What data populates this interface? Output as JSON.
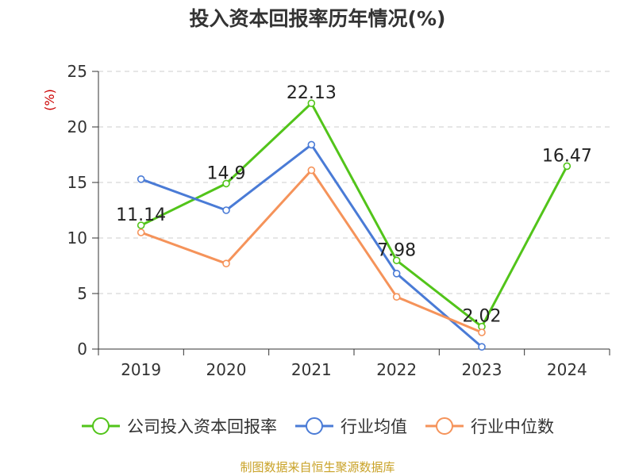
{
  "chart_data": {
    "type": "line",
    "title": "投入资本回报率历年情况(%)",
    "ylabel": "(%)",
    "xlabel": "",
    "ylim": [
      0,
      25
    ],
    "yticks": [
      0,
      5,
      10,
      15,
      20,
      25
    ],
    "categories": [
      "2019",
      "2020",
      "2021",
      "2022",
      "2023",
      "2024"
    ],
    "series": [
      {
        "name": "公司投入资本回报率",
        "color": "#52c41a",
        "values": [
          11.14,
          14.9,
          22.13,
          7.98,
          2.02,
          16.47
        ],
        "labels": true
      },
      {
        "name": "行业均值",
        "color": "#4a7bd6",
        "values": [
          15.3,
          12.5,
          18.4,
          6.8,
          0.2,
          null
        ],
        "labels": false
      },
      {
        "name": "行业中位数",
        "color": "#f5935a",
        "values": [
          10.5,
          7.7,
          16.1,
          4.7,
          1.5,
          null
        ],
        "labels": false
      }
    ],
    "grid": true,
    "legend_position": "bottom"
  },
  "source_note": "制图数据来自恒生聚源数据库"
}
